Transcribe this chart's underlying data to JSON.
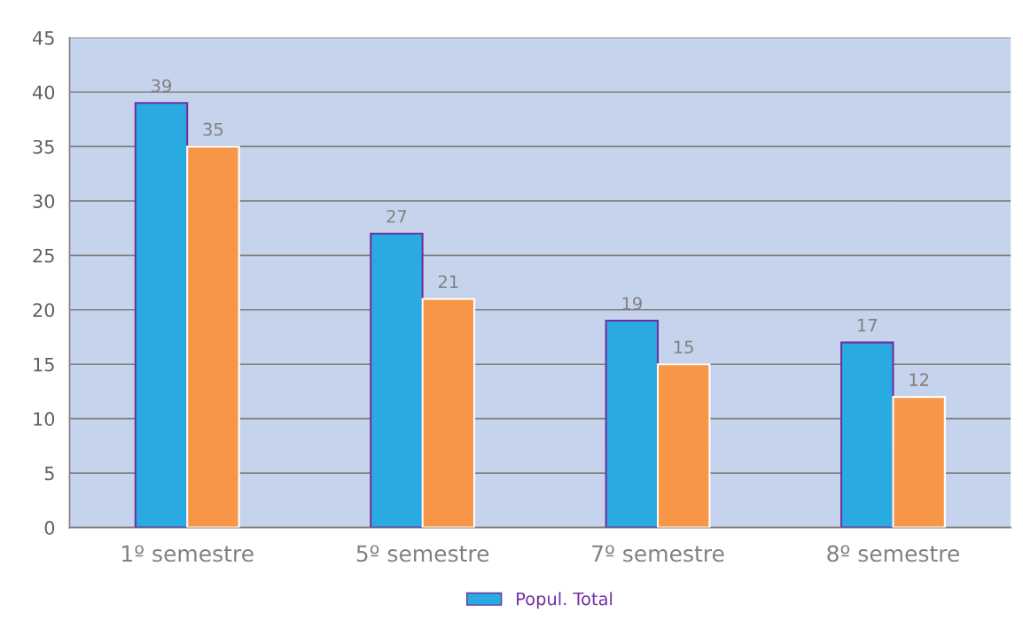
{
  "chart_data": {
    "type": "bar",
    "categories": [
      "1º semestre",
      "5º semestre",
      "7º semestre",
      "8º semestre"
    ],
    "series": [
      {
        "name": "Popul. Total",
        "color": "#29abe2",
        "values": [
          39,
          27,
          19,
          17
        ]
      },
      {
        "color": "#f79646",
        "values": [
          35,
          21,
          15,
          12
        ]
      }
    ],
    "ylim": [
      0,
      45
    ],
    "yticks": [
      0,
      5,
      10,
      15,
      20,
      25,
      30,
      35,
      40,
      45
    ],
    "grid": "y",
    "data_labels": true,
    "legend": "bottom"
  }
}
